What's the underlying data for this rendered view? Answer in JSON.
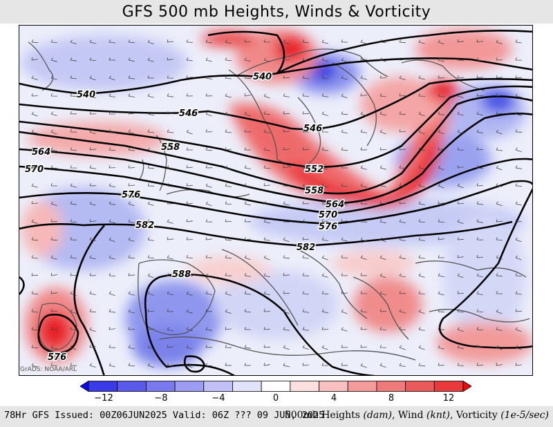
{
  "title": "GFS 500 mb Heights, Winds & Vorticity",
  "credit": "GrADS: NOAA/ARL",
  "footer": {
    "left": "78Hr GFS Issued: 00Z06JUN2025 Valid: 06Z ??? 09 JUN, 2025",
    "right_main": "500mb Heights ",
    "right_heights_unit": "(dam)",
    "right_wind": ", Wind ",
    "right_wind_unit": "(knt)",
    "right_vort": ", Vorticity ",
    "right_vort_unit": "(1e-5/sec)"
  },
  "colorbar": {
    "colors": [
      "#0b0bf0",
      "#3a3ae6",
      "#5a5aea",
      "#7a7aee",
      "#9c9cf2",
      "#c0c0f6",
      "#e2e2fa",
      "#ffffff",
      "#fbe0e0",
      "#f8c0c0",
      "#f49c9c",
      "#ee7a7a",
      "#ea5a5a",
      "#e83a3a",
      "#f00b0b"
    ],
    "tick_labels": [
      "−12",
      "−8",
      "−4",
      "0",
      "4",
      "8",
      "12"
    ]
  },
  "contour_labels": [
    "540",
    "540",
    "546",
    "546",
    "552",
    "558",
    "558",
    "564",
    "564",
    "570",
    "570",
    "576",
    "576",
    "576",
    "582",
    "582",
    "588"
  ],
  "map": {
    "vorticity_colors": {
      "strong_positive": "#e8222a",
      "positive": "#f4a0a0",
      "weak_positive": "#fbe0e0",
      "weak_negative": "#dde0f8",
      "negative": "#a6acf0",
      "strong_negative": "#3a3ae6"
    },
    "height_contour_color": "#000000",
    "coastline_color": "#555555"
  }
}
